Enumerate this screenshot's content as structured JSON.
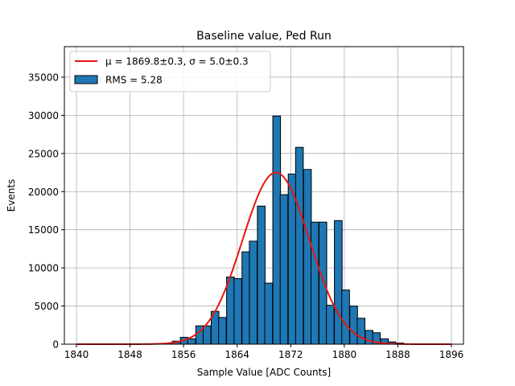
{
  "chart_data": {
    "type": "bar",
    "title": "Baseline value, Ped Run",
    "xlabel": "Sample Value [ADC Counts]",
    "ylabel": "Events",
    "xlim": [
      1838.2,
      1897.8
    ],
    "ylim": [
      0,
      39000
    ],
    "xticks": [
      1840,
      1848,
      1856,
      1864,
      1872,
      1880,
      1888,
      1896
    ],
    "yticks": [
      0,
      5000,
      10000,
      15000,
      20000,
      25000,
      30000,
      35000
    ],
    "grid": true,
    "legend_position": "top-left",
    "bin_width": 1.15,
    "bins": [
      {
        "x": 1853.8,
        "count": 100
      },
      {
        "x": 1854.9,
        "count": 400
      },
      {
        "x": 1856.1,
        "count": 900
      },
      {
        "x": 1857.2,
        "count": 700
      },
      {
        "x": 1858.4,
        "count": 2400
      },
      {
        "x": 1859.5,
        "count": 2400
      },
      {
        "x": 1860.7,
        "count": 4300
      },
      {
        "x": 1861.8,
        "count": 3500
      },
      {
        "x": 1863.0,
        "count": 8800
      },
      {
        "x": 1864.1,
        "count": 8600
      },
      {
        "x": 1865.3,
        "count": 12100
      },
      {
        "x": 1866.4,
        "count": 13500
      },
      {
        "x": 1867.6,
        "count": 18100
      },
      {
        "x": 1868.7,
        "count": 8000
      },
      {
        "x": 1869.9,
        "count": 29900
      },
      {
        "x": 1871.0,
        "count": 19600
      },
      {
        "x": 1872.2,
        "count": 22300
      },
      {
        "x": 1873.3,
        "count": 25800
      },
      {
        "x": 1874.5,
        "count": 22900
      },
      {
        "x": 1875.6,
        "count": 16000
      },
      {
        "x": 1876.8,
        "count": 16000
      },
      {
        "x": 1877.9,
        "count": 5100
      },
      {
        "x": 1879.1,
        "count": 16200
      },
      {
        "x": 1880.2,
        "count": 7100
      },
      {
        "x": 1881.4,
        "count": 5000
      },
      {
        "x": 1882.5,
        "count": 3400
      },
      {
        "x": 1883.7,
        "count": 1800
      },
      {
        "x": 1884.8,
        "count": 1500
      },
      {
        "x": 1886.0,
        "count": 700
      },
      {
        "x": 1887.1,
        "count": 300
      },
      {
        "x": 1888.3,
        "count": 150
      }
    ],
    "fit": {
      "mu": 1869.8,
      "sigma": 5.0,
      "amplitude": 22500,
      "x_range": [
        1840,
        1896
      ]
    },
    "series": [
      {
        "name": "μ = 1869.8±0.3, σ = 5.0±0.3",
        "kind": "line",
        "color": "#e8160e"
      },
      {
        "name": "RMS = 5.28",
        "kind": "bar",
        "color": "#1f77b4"
      }
    ]
  }
}
